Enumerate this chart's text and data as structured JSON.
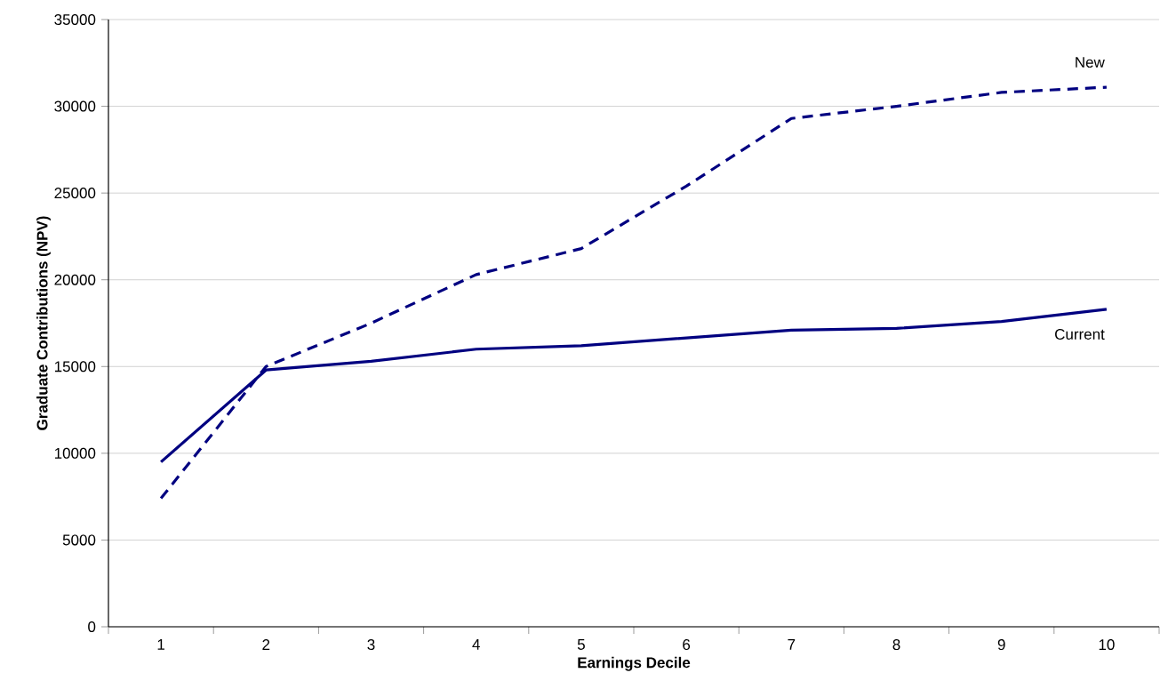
{
  "chart_data": {
    "type": "line",
    "xlabel": "Earnings Decile",
    "ylabel": "Graduate Contributions (NPV)",
    "categories": [
      "1",
      "2",
      "3",
      "4",
      "5",
      "6",
      "7",
      "8",
      "9",
      "10"
    ],
    "series": [
      {
        "name": "Current",
        "color": "#000080",
        "line_style": "solid",
        "values": [
          9500,
          14800,
          15300,
          16000,
          16200,
          16650,
          17100,
          17200,
          17600,
          18300
        ]
      },
      {
        "name": "New",
        "color": "#000080",
        "line_style": "dashed",
        "values": [
          7400,
          15000,
          17500,
          20300,
          21800,
          25400,
          29300,
          30000,
          30800,
          31100
        ]
      }
    ],
    "ylim": [
      0,
      35000
    ],
    "yticks": [
      0,
      5000,
      10000,
      15000,
      20000,
      25000,
      30000,
      35000
    ],
    "grid": "y"
  }
}
